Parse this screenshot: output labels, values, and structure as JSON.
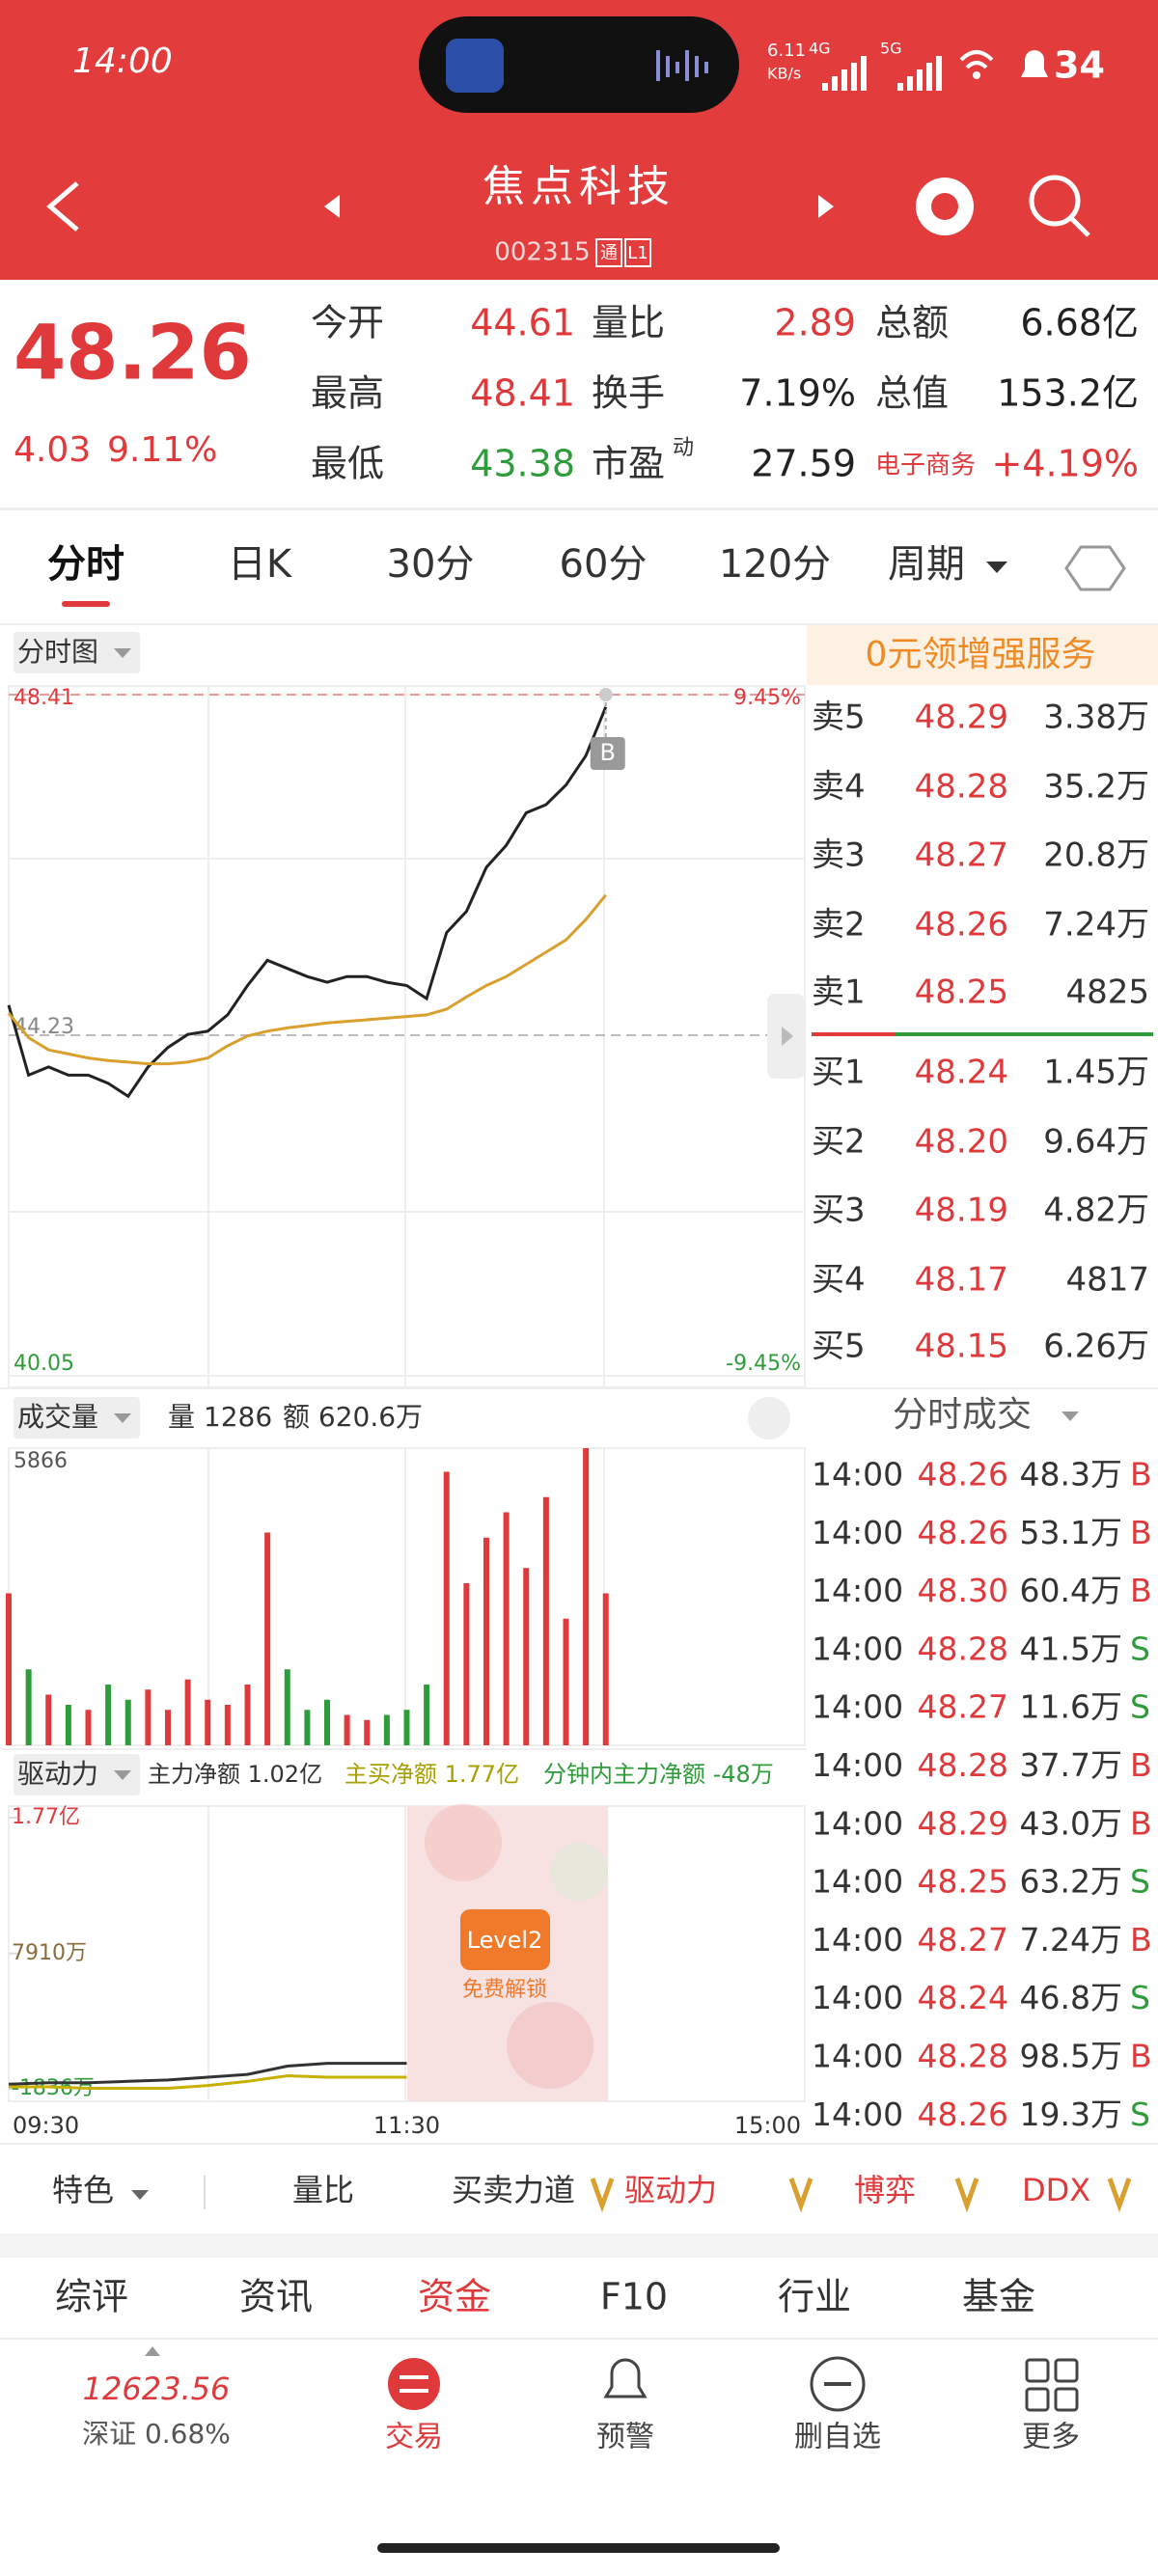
{
  "status_bar": {
    "time": "14:00",
    "speed": "6.11",
    "speed_unit": "KB/s",
    "net_a": "4G",
    "net_b": "5G",
    "battery": "34"
  },
  "header": {
    "title": "焦点科技",
    "code": "002315",
    "tags": [
      "通",
      "L1"
    ]
  },
  "quote": {
    "price": "48.26",
    "change": "4.03",
    "change_pct": "9.11%",
    "grid": [
      [
        {
          "label": "今开",
          "value": "44.61"
        },
        {
          "label": "量比",
          "value": "2.89"
        },
        {
          "label": "总额",
          "value": "6.68亿"
        }
      ],
      [
        {
          "label": "最高",
          "value": "48.41"
        },
        {
          "label": "换手",
          "value": "7.19%"
        },
        {
          "label": "总值",
          "value": "153.2亿"
        }
      ],
      [
        {
          "label": "最低",
          "value": "43.38"
        },
        {
          "label": "市盈",
          "sup": "动",
          "value": "27.59"
        },
        {
          "label": "电子商务",
          "value": "+4.19%"
        }
      ]
    ]
  },
  "tabs": [
    "分时",
    "日K",
    "30分",
    "60分",
    "120分",
    "周期"
  ],
  "chart_data": [
    {
      "type": "line",
      "title": "分时图",
      "marker_label": "B",
      "x": [
        0,
        6,
        12,
        18,
        24,
        30,
        36,
        42,
        48,
        54,
        60,
        66,
        72,
        78,
        84,
        90,
        96,
        102,
        108,
        114,
        120,
        126,
        132,
        138,
        144,
        150,
        156,
        162,
        168,
        174,
        180
      ],
      "xlim": [
        0,
        240
      ],
      "ylim": [
        40.05,
        48.41
      ],
      "yticks": [
        40.05,
        44.23,
        48.41
      ],
      "y2lim": [
        -9.45,
        9.45
      ],
      "y2ticks": [
        {
          "value": -9.45,
          "label": "-9.45%"
        },
        {
          "value": 9.45,
          "label": "9.45%"
        }
      ],
      "series": [
        {
          "color": "#222222",
          "values": [
            44.6,
            43.74,
            43.84,
            43.74,
            43.74,
            43.64,
            43.48,
            43.84,
            44.08,
            44.24,
            44.28,
            44.48,
            44.84,
            45.15,
            45.05,
            44.95,
            44.88,
            44.95,
            44.95,
            44.88,
            44.84,
            44.68,
            45.49,
            45.75,
            46.29,
            46.56,
            46.96,
            47.06,
            47.3,
            47.66,
            48.26
          ]
        },
        {
          "color": "#d9a030",
          "values": [
            44.5,
            44.2,
            44.05,
            44.0,
            43.95,
            43.92,
            43.9,
            43.88,
            43.88,
            43.9,
            43.95,
            44.1,
            44.22,
            44.28,
            44.32,
            44.35,
            44.38,
            44.4,
            44.42,
            44.44,
            44.46,
            44.48,
            44.55,
            44.7,
            44.84,
            44.95,
            45.1,
            45.25,
            45.4,
            45.65,
            45.95
          ]
        }
      ]
    },
    {
      "type": "bar",
      "title": "成交量",
      "info": [
        "量 1286",
        "额 620.6万"
      ],
      "x": [
        0,
        6,
        12,
        18,
        24,
        30,
        36,
        42,
        48,
        54,
        60,
        66,
        72,
        78,
        84,
        90,
        96,
        102,
        108,
        114,
        120,
        126,
        132,
        138,
        144,
        150,
        156,
        162,
        168,
        174,
        180
      ],
      "xlim": [
        0,
        240
      ],
      "ylim": [
        0,
        5866
      ],
      "yticks": [
        5866
      ],
      "values": [
        3000,
        1500,
        1000,
        800,
        700,
        1200,
        900,
        1100,
        700,
        1300,
        900,
        800,
        1200,
        4200,
        1500,
        700,
        900,
        600,
        500,
        600,
        700,
        1200,
        5400,
        3200,
        4100,
        4600,
        3500,
        4900,
        2500,
        5866,
        3000
      ],
      "up_color": "#e0393b",
      "down_color": "#2e9c3a"
    },
    {
      "type": "line",
      "title": "驱动力",
      "info": [
        "主力净额 1.02亿",
        "主买净额 1.77亿",
        "分钟内主力净额 -48万"
      ],
      "x": [
        0,
        12,
        24,
        36,
        48,
        60,
        72,
        84,
        96,
        108,
        120
      ],
      "xlim": [
        0,
        240
      ],
      "ylim": [
        -1836,
        17700
      ],
      "yticks": [
        {
          "value": -1836,
          "label": "-1836万"
        },
        {
          "value": 7910,
          "label": "7910万"
        },
        {
          "value": 17700,
          "label": "1.77亿"
        }
      ],
      "xticks": [
        {
          "value": 0,
          "label": "09:30"
        },
        {
          "value": 120,
          "label": "11:30"
        },
        {
          "value": 240,
          "label": "15:00"
        }
      ],
      "series": [
        {
          "color": "#333333",
          "values": [
            -1500,
            -1400,
            -1400,
            -1300,
            -1200,
            -1000,
            -800,
            -200,
            0,
            0,
            0
          ]
        },
        {
          "color": "#c8b000",
          "values": [
            -1700,
            -1700,
            -1800,
            -1800,
            -1800,
            -1600,
            -1300,
            -900,
            -1000,
            -1000,
            -1000
          ]
        }
      ],
      "locked": {
        "badge": "Level2",
        "text": "免费解锁"
      }
    }
  ],
  "order_book": {
    "promo": "0元领增强服务",
    "asks": [
      {
        "label": "卖5",
        "price": "48.29",
        "volume": "3.38万"
      },
      {
        "label": "卖4",
        "price": "48.28",
        "volume": "35.2万"
      },
      {
        "label": "卖3",
        "price": "48.27",
        "volume": "20.8万"
      },
      {
        "label": "卖2",
        "price": "48.26",
        "volume": "7.24万"
      },
      {
        "label": "卖1",
        "price": "48.25",
        "volume": "4825"
      }
    ],
    "bids": [
      {
        "label": "买1",
        "price": "48.24",
        "volume": "1.45万"
      },
      {
        "label": "买2",
        "price": "48.20",
        "volume": "9.64万"
      },
      {
        "label": "买3",
        "price": "48.19",
        "volume": "4.82万"
      },
      {
        "label": "买4",
        "price": "48.17",
        "volume": "4817"
      },
      {
        "label": "买5",
        "price": "48.15",
        "volume": "6.26万"
      }
    ]
  },
  "trades": {
    "title": "分时成交",
    "rows": [
      [
        "14:00",
        "48.26",
        "48.3万",
        "B"
      ],
      [
        "14:00",
        "48.26",
        "53.1万",
        "B"
      ],
      [
        "14:00",
        "48.30",
        "60.4万",
        "B"
      ],
      [
        "14:00",
        "48.28",
        "41.5万",
        "S"
      ],
      [
        "14:00",
        "48.27",
        "11.6万",
        "S"
      ],
      [
        "14:00",
        "48.28",
        "37.7万",
        "B"
      ],
      [
        "14:00",
        "48.29",
        "43.0万",
        "B"
      ],
      [
        "14:00",
        "48.25",
        "63.2万",
        "S"
      ],
      [
        "14:00",
        "48.27",
        "7.24万",
        "B"
      ],
      [
        "14:00",
        "48.24",
        "46.8万",
        "S"
      ],
      [
        "14:00",
        "48.28",
        "98.5万",
        "B"
      ],
      [
        "14:00",
        "48.26",
        "19.3万",
        "S"
      ]
    ]
  },
  "feature_bar": [
    "特色",
    "量比",
    "买卖力道",
    "驱动力",
    "博弈",
    "DDX"
  ],
  "section_tabs": [
    "综评",
    "资讯",
    "资金",
    "F10",
    "行业",
    "基金"
  ],
  "nav": {
    "index_value": "12623.56",
    "index_label": "深证 0.68%",
    "items": [
      "交易",
      "预警",
      "删自选",
      "更多"
    ]
  }
}
